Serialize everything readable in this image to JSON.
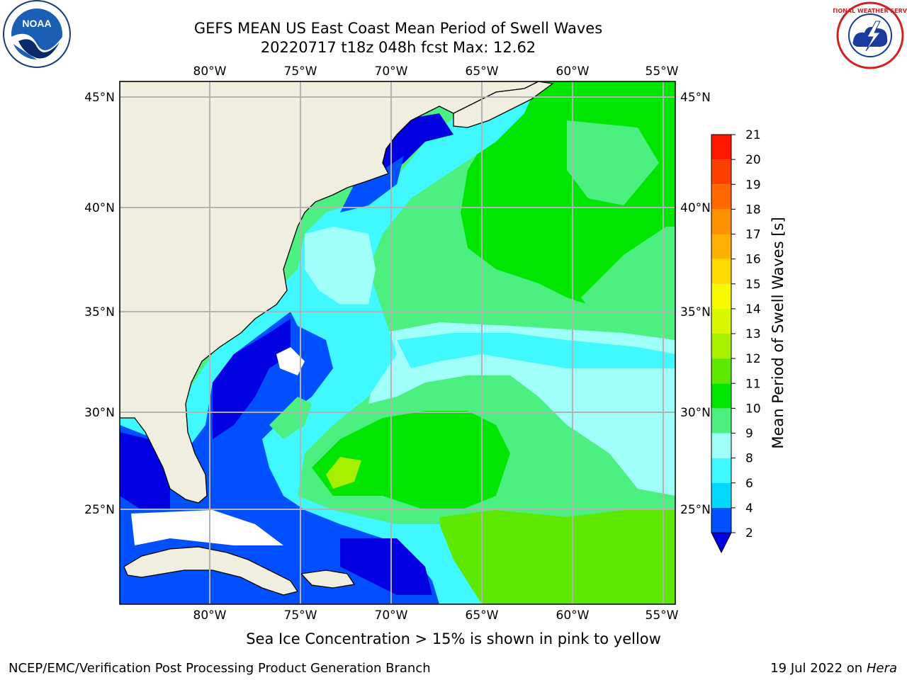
{
  "header": {
    "title_line1": "GEFS MEAN US East Coast Mean Period of Swell Waves",
    "title_line2": "20220717 t18z 048h fcst   Max: 12.62"
  },
  "logos": {
    "left": "NOAA",
    "right": "NATIONAL WEATHER SERVICE"
  },
  "map": {
    "lon_labels": [
      "80°W",
      "75°W",
      "70°W",
      "65°W",
      "60°W",
      "55°W"
    ],
    "lat_labels": [
      "45°N",
      "40°N",
      "35°N",
      "30°N",
      "25°N"
    ],
    "land_color": "#efeedf",
    "grid_color": "#b3b3b3"
  },
  "colorbar": {
    "label": "Mean Period of Swell Waves [s]",
    "ticks": [
      "2",
      "4",
      "6",
      "8",
      "9",
      "10",
      "11",
      "12",
      "13",
      "14",
      "15",
      "16",
      "17",
      "18",
      "19",
      "20",
      "21"
    ],
    "colors": [
      "#0050ff",
      "#00d8ff",
      "#40f8ff",
      "#a0fff8",
      "#4cf080",
      "#00e600",
      "#5ee800",
      "#a8f000",
      "#d8f800",
      "#f8f800",
      "#ffd800",
      "#ffb000",
      "#ff9000",
      "#ff6800",
      "#ff4000",
      "#ff1800"
    ],
    "under_color": "#0000e0"
  },
  "note": "Sea Ice Concentration > 15% is shown in pink to yellow",
  "footer": {
    "left": "NCEP/EMC/Verification Post Processing Product Generation Branch",
    "right_date": "19 Jul 2022 on ",
    "right_machine": "Hera"
  }
}
